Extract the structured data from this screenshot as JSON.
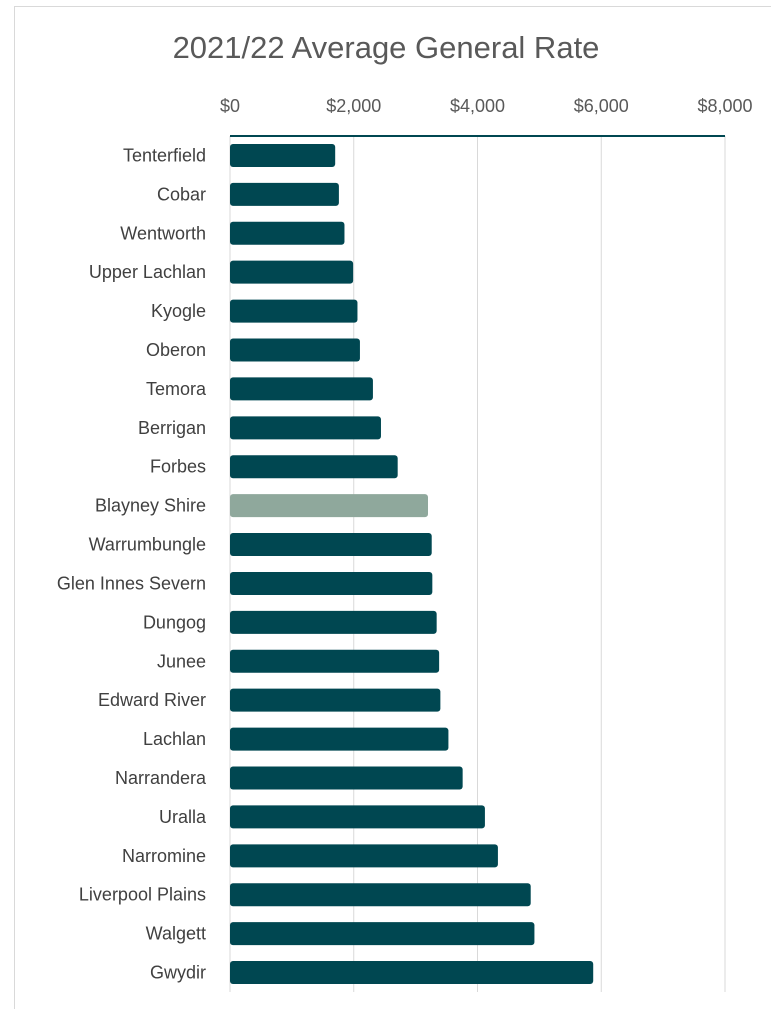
{
  "chart_data": {
    "type": "bar",
    "orientation": "horizontal",
    "title": "2021/22 Average General Rate",
    "xlabel": "",
    "ylabel": "",
    "xlim": [
      0,
      8000
    ],
    "x_ticks": [
      0,
      2000,
      4000,
      6000,
      8000
    ],
    "x_tick_labels": [
      "$0",
      "$2,000",
      "$4,000",
      "$6,000",
      "$8,000"
    ],
    "x_axis_position": "top",
    "grid": true,
    "categories": [
      "Tenterfield",
      "Cobar",
      "Wentworth",
      "Upper Lachlan",
      "Kyogle",
      "Oberon",
      "Temora",
      "Berrigan",
      "Forbes",
      "Blayney Shire",
      "Warrumbungle",
      "Glen Innes Severn",
      "Dungog",
      "Junee",
      "Edward River",
      "Lachlan",
      "Narrandera",
      "Uralla",
      "Narromine",
      "Liverpool Plains",
      "Walgett",
      "Gwydir"
    ],
    "values": [
      1700,
      1760,
      1850,
      1990,
      2060,
      2100,
      2310,
      2440,
      2710,
      3200,
      3260,
      3270,
      3340,
      3380,
      3400,
      3530,
      3760,
      4120,
      4330,
      4860,
      4920,
      5870
    ],
    "highlight_category": "Blayney Shire",
    "colors": {
      "bar": "#004751",
      "highlight": "#8fa89c",
      "grid": "#d9d9d9",
      "axis": "#004751"
    }
  }
}
